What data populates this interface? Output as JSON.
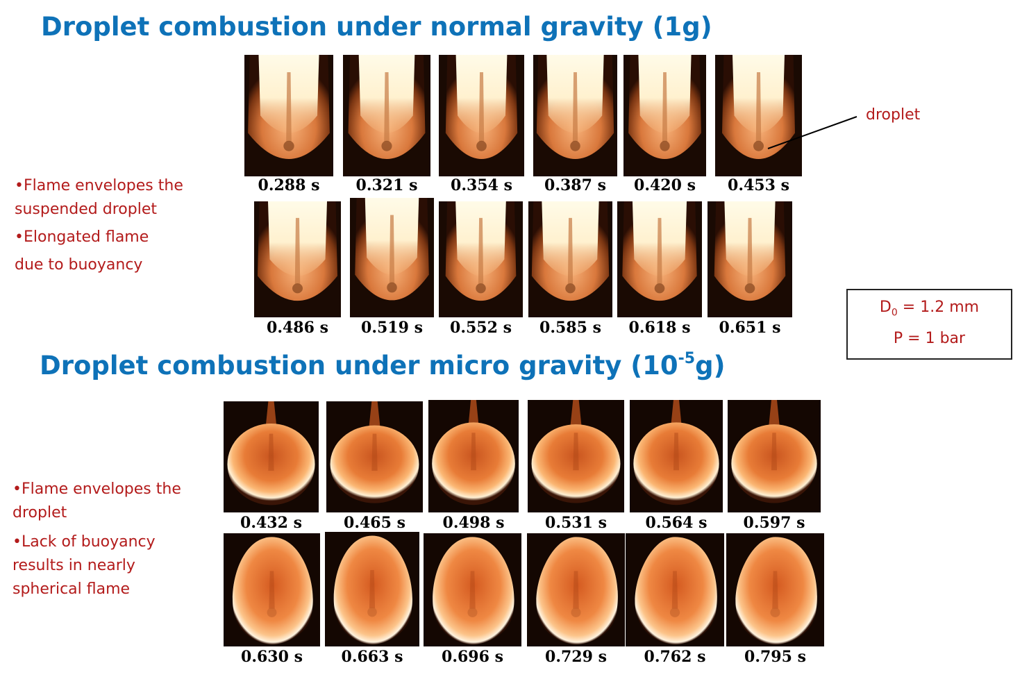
{
  "section_1g": {
    "title": "Droplet combustion under normal gravity (1g)",
    "bullets": [
      "•Flame envelopes the",
      "suspended droplet",
      "•Elongated flame",
      "due to buoyancy"
    ],
    "row1_times": [
      "0.288 s",
      "0.321 s",
      "0.354 s",
      "0.387 s",
      "0.420 s",
      "0.453 s"
    ],
    "row2_times": [
      "0.486 s",
      "0.519 s",
      "0.552 s",
      "0.585 s",
      "0.618 s",
      "0.651 s"
    ],
    "callout": "droplet"
  },
  "section_ug": {
    "title_main": "Droplet combustion under micro gravity (10",
    "title_exp": "-5",
    "title_end": "g)",
    "bullets": [
      "•Flame envelopes the",
      "droplet",
      "•Lack of buoyancy",
      "results in nearly",
      "spherical flame"
    ],
    "row1_times": [
      "0.432 s",
      "0.465 s",
      "0.498 s",
      "0.531 s",
      "0.564 s",
      "0.597 s"
    ],
    "row2_times": [
      "0.630 s",
      "0.663 s",
      "0.696 s",
      "0.729 s",
      "0.762 s",
      "0.795 s"
    ]
  },
  "params": {
    "d_symbol": "D",
    "d_sub": "0",
    "d_rest": " = 1.2 mm",
    "p_text": "P = 1 bar"
  },
  "colors": {
    "title": "#0e72b8",
    "bullet_text": "#b31b1b",
    "label_text": "#000000"
  }
}
